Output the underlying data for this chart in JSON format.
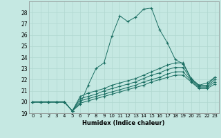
{
  "xlabel": "Humidex (Indice chaleur)",
  "xlim": [
    -0.5,
    23.5
  ],
  "ylim": [
    19,
    29
  ],
  "yticks": [
    19,
    20,
    21,
    22,
    23,
    24,
    25,
    26,
    27,
    28
  ],
  "xticks": [
    0,
    1,
    2,
    3,
    4,
    5,
    6,
    7,
    8,
    9,
    10,
    11,
    12,
    13,
    14,
    15,
    16,
    17,
    18,
    19,
    20,
    21,
    22,
    23
  ],
  "bg_color": "#c5e8e2",
  "line_color": "#1a6e62",
  "lines": [
    [
      20.0,
      20.0,
      20.0,
      20.0,
      20.0,
      19.2,
      19.8,
      21.5,
      23.0,
      23.5,
      25.9,
      27.7,
      27.2,
      27.6,
      28.3,
      28.4,
      26.5,
      25.3,
      23.8,
      23.4,
      22.1,
      21.5,
      21.7,
      22.2
    ],
    [
      20.0,
      20.0,
      20.0,
      20.0,
      20.0,
      19.2,
      20.5,
      20.8,
      21.0,
      21.2,
      21.5,
      21.7,
      21.9,
      22.1,
      22.4,
      22.7,
      23.0,
      23.3,
      23.5,
      23.5,
      22.1,
      21.5,
      21.5,
      22.2
    ],
    [
      20.0,
      20.0,
      20.0,
      20.0,
      20.0,
      19.2,
      20.3,
      20.5,
      20.7,
      21.0,
      21.2,
      21.4,
      21.6,
      21.8,
      22.1,
      22.4,
      22.6,
      22.9,
      23.1,
      23.1,
      22.0,
      21.4,
      21.4,
      22.0
    ],
    [
      20.0,
      20.0,
      20.0,
      20.0,
      20.0,
      19.2,
      20.1,
      20.3,
      20.5,
      20.7,
      20.9,
      21.1,
      21.3,
      21.5,
      21.8,
      22.0,
      22.2,
      22.5,
      22.7,
      22.7,
      21.9,
      21.3,
      21.3,
      21.8
    ],
    [
      20.0,
      20.0,
      20.0,
      20.0,
      20.0,
      19.2,
      19.9,
      20.1,
      20.3,
      20.5,
      20.7,
      20.9,
      21.1,
      21.3,
      21.5,
      21.8,
      22.0,
      22.2,
      22.4,
      22.4,
      21.8,
      21.2,
      21.2,
      21.6
    ]
  ]
}
